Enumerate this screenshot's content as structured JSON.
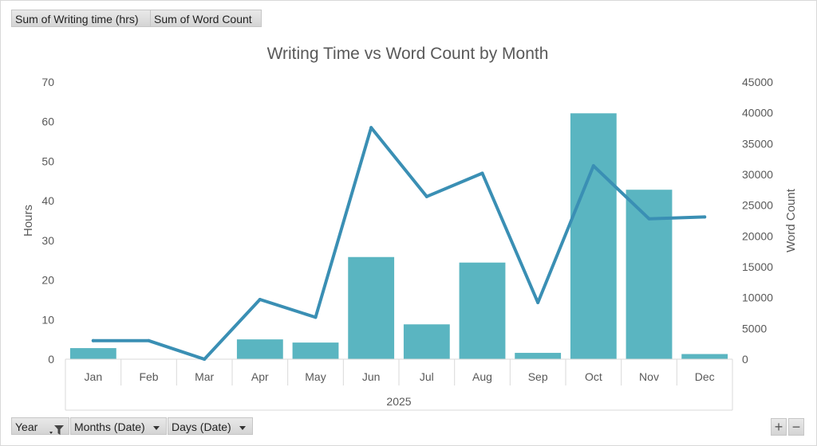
{
  "value_fields": [
    {
      "label": "Sum of Writing time (hrs)"
    },
    {
      "label": "Sum of Word Count"
    }
  ],
  "axis_fields": [
    {
      "label": "Year",
      "icon": "filter-icon"
    },
    {
      "label": "Months (Date)",
      "icon": "chevron-down-icon"
    },
    {
      "label": "Days (Date)",
      "icon": "chevron-down-icon"
    }
  ],
  "zoom": {
    "plus": "+",
    "minus": "−"
  },
  "colors": {
    "bar": "#5ab5c1",
    "line": "#3a8fb4",
    "text": "#595959",
    "axis": "#d9d9d9"
  },
  "chart_data": {
    "type": "bar+line",
    "title": "Writing Time vs Word Count by Month",
    "categories": [
      "Jan",
      "Feb",
      "Mar",
      "Apr",
      "May",
      "Jun",
      "Jul",
      "Aug",
      "Sep",
      "Oct",
      "Nov",
      "Dec"
    ],
    "group_label": "2025",
    "series": [
      {
        "type": "bar",
        "axis": "left",
        "values": [
          2.8,
          0,
          0,
          5,
          4.2,
          25.8,
          8.8,
          24.4,
          1.6,
          62.1,
          42.8,
          1.3
        ]
      },
      {
        "type": "line",
        "axis": "right",
        "values": [
          3000,
          3000,
          0,
          9700,
          6800,
          37600,
          26400,
          30200,
          9200,
          31400,
          22800,
          23100
        ]
      }
    ],
    "left_axis": {
      "label": "Hours",
      "min": 0,
      "max": 70,
      "ticks": [
        0,
        10,
        20,
        30,
        40,
        50,
        60,
        70
      ]
    },
    "right_axis": {
      "label": "Word Count",
      "min": 0,
      "max": 45000,
      "ticks": [
        0,
        5000,
        10000,
        15000,
        20000,
        25000,
        30000,
        35000,
        40000,
        45000
      ]
    },
    "grid": false,
    "legend": "none"
  }
}
